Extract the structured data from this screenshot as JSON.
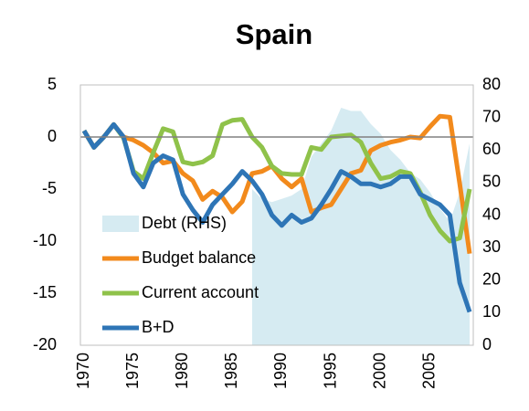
{
  "chart_data": {
    "type": "line",
    "title": "Spain",
    "x": [
      1970,
      1971,
      1972,
      1973,
      1974,
      1975,
      1976,
      1977,
      1978,
      1979,
      1980,
      1981,
      1982,
      1983,
      1984,
      1985,
      1986,
      1987,
      1988,
      1989,
      1990,
      1991,
      1992,
      1993,
      1994,
      1995,
      1996,
      1997,
      1998,
      1999,
      2000,
      2001,
      2002,
      2003,
      2004,
      2005,
      2006,
      2007,
      2008,
      2009
    ],
    "xlim": [
      1970,
      2009
    ],
    "xticks": [
      1970,
      1975,
      1980,
      1985,
      1990,
      1995,
      2000,
      2005
    ],
    "ylim": [
      -20,
      5
    ],
    "yticks": [
      -20,
      -15,
      -10,
      -5,
      0,
      5
    ],
    "y2lim": [
      0,
      80
    ],
    "y2ticks": [
      0,
      10,
      20,
      30,
      40,
      50,
      60,
      70,
      80
    ],
    "series": [
      {
        "name": "Debt (RHS)",
        "color": "#d6ebf2",
        "axis": "y2",
        "kind": "area",
        "values": [
          null,
          null,
          null,
          null,
          null,
          null,
          null,
          null,
          null,
          null,
          null,
          null,
          null,
          null,
          null,
          null,
          null,
          48,
          45,
          44,
          45,
          46,
          48,
          58,
          62,
          66,
          73,
          72,
          72,
          68,
          65,
          60,
          57,
          53,
          51,
          47,
          42,
          38,
          47,
          62
        ]
      },
      {
        "name": "Budget balance",
        "color": "#f28a1c",
        "values": [
          0.6,
          -1,
          0,
          1.2,
          0,
          -0.3,
          -0.8,
          -1.5,
          -2.5,
          -2.3,
          -3.5,
          -4.2,
          -6,
          -5.2,
          -5.8,
          -7.2,
          -6.2,
          -3.5,
          -3.3,
          -2.8,
          -4,
          -4.8,
          -4,
          -7.2,
          -6.8,
          -6.5,
          -5,
          -3.5,
          -3.2,
          -1.3,
          -0.8,
          -0.5,
          -0.3,
          0,
          -0.1,
          1,
          2,
          1.9,
          -4.5,
          -11.2
        ]
      },
      {
        "name": "Current account",
        "color": "#8fc24a",
        "values": [
          0.6,
          -1,
          0,
          1.2,
          -0.1,
          -3.3,
          -4,
          -1.5,
          0.8,
          0.5,
          -2.4,
          -2.6,
          -2.4,
          -1.8,
          1.2,
          1.6,
          1.7,
          0,
          -1,
          -2.8,
          -3.5,
          -3.6,
          -3.6,
          -1,
          -1.2,
          0,
          0.1,
          0.2,
          -0.5,
          -2.5,
          -4,
          -3.8,
          -3.3,
          -3.5,
          -5.3,
          -7.5,
          -9,
          -10,
          -9.7,
          -5
        ]
      },
      {
        "name": "B+D",
        "color": "#2e75b6",
        "values": [
          0.6,
          -1,
          0,
          1.2,
          0,
          -3.5,
          -4.8,
          -2.5,
          -1.8,
          -2.2,
          -5.5,
          -7,
          -8.2,
          -6.5,
          -5.5,
          -4.5,
          -3.3,
          -4.2,
          -5.5,
          -7.5,
          -8.5,
          -7.5,
          -8.2,
          -7.8,
          -6.5,
          -5,
          -3.3,
          -3.8,
          -4.5,
          -4.5,
          -4.8,
          -4.5,
          -3.8,
          -3.8,
          -5.5,
          -6,
          -6.5,
          -7.5,
          -14,
          -16.8
        ]
      }
    ]
  }
}
